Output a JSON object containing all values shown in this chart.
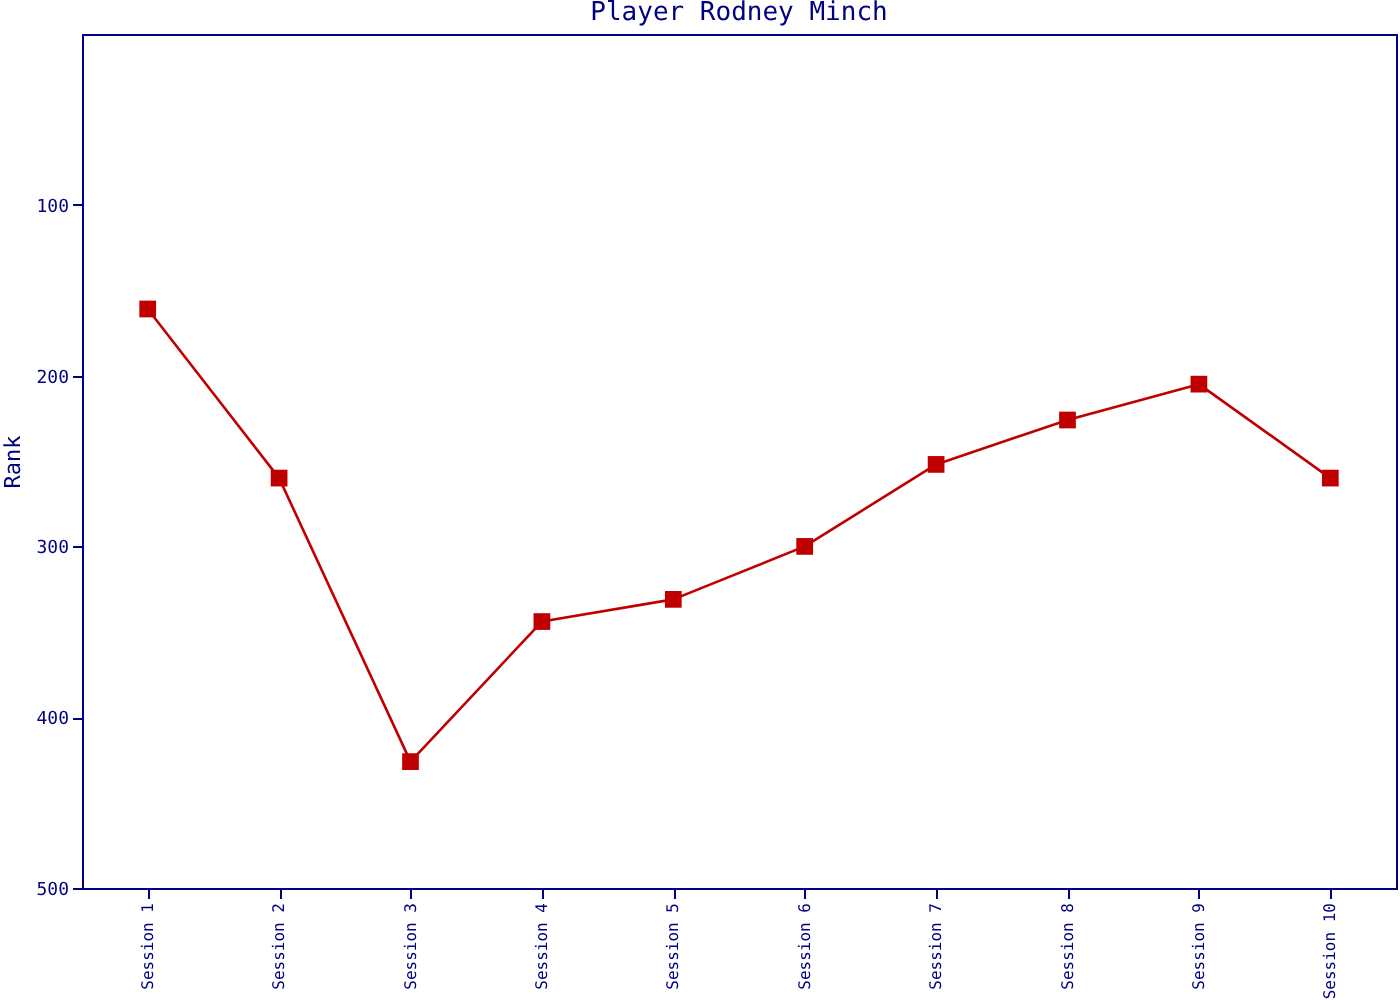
{
  "chart_data": {
    "type": "line",
    "title": "Player Rodney Minch",
    "ylabel": "Rank",
    "categories": [
      "Session 1",
      "Session 2",
      "Session 3",
      "Session 4",
      "Session 5",
      "Session 6",
      "Session 7",
      "Session 8",
      "Session 9",
      "Session 10"
    ],
    "series": [
      {
        "color": "#c00000",
        "values": [
          161,
          260,
          426,
          344,
          331,
          300,
          252,
          226,
          205,
          260
        ]
      }
    ],
    "ylim": [
      500,
      0
    ],
    "yticks": [
      100,
      200,
      300,
      400,
      500
    ],
    "grid": false,
    "marker": "square",
    "line_style": "solid"
  }
}
